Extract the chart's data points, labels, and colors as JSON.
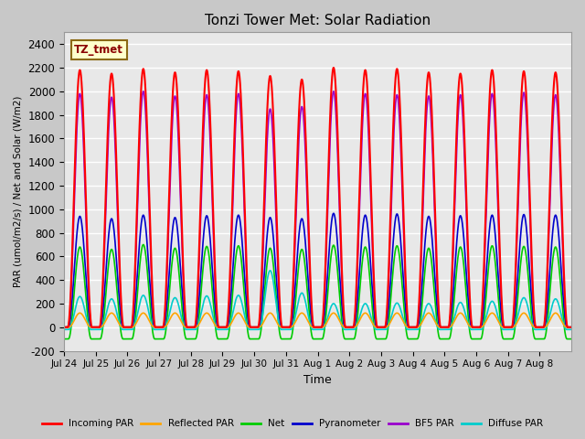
{
  "title": "Tonzi Tower Met: Solar Radiation",
  "ylabel": "PAR (umol/m2/s) / Net and Solar (W/m2)",
  "xlabel": "Time",
  "ylim": [
    -200,
    2500
  ],
  "yticks": [
    -200,
    0,
    200,
    400,
    600,
    800,
    1000,
    1200,
    1400,
    1600,
    1800,
    2000,
    2200,
    2400
  ],
  "xtick_labels": [
    "Jul 24",
    "Jul 25",
    "Jul 26",
    "Jul 27",
    "Jul 28",
    "Jul 29",
    "Jul 30",
    "Jul 31",
    "Aug 1",
    "Aug 2",
    "Aug 3",
    "Aug 4",
    "Aug 5",
    "Aug 6",
    "Aug 7",
    "Aug 8"
  ],
  "annotation_text": "TZ_tmet",
  "annotation_bg": "#FFFFCC",
  "annotation_fg": "#8B0000",
  "annotation_edge": "#8B6914",
  "plot_bg": "#E8E8E8",
  "fig_bg": "#C8C8C8",
  "grid_color": "#FFFFFF",
  "series": {
    "incoming_par": {
      "color": "#FF0000",
      "label": "Incoming PAR"
    },
    "reflected_par": {
      "color": "#FFA500",
      "label": "Reflected PAR"
    },
    "net": {
      "color": "#00CC00",
      "label": "Net"
    },
    "pyranometer": {
      "color": "#0000CC",
      "label": "Pyranometer"
    },
    "bf5_par": {
      "color": "#9900CC",
      "label": "BF5 PAR"
    },
    "diffuse_par": {
      "color": "#00CCCC",
      "label": "Diffuse PAR"
    }
  },
  "n_days": 16,
  "pts_per_day": 288,
  "incoming_peaks": [
    2180,
    2150,
    2190,
    2160,
    2180,
    2170,
    2130,
    2100,
    2200,
    2180,
    2190,
    2160,
    2150,
    2180,
    2170,
    2160
  ],
  "bf5_peaks": [
    1980,
    1950,
    2000,
    1960,
    1970,
    1980,
    1850,
    1870,
    2000,
    1980,
    1970,
    1960,
    1970,
    1980,
    1990,
    1970
  ],
  "pyrano_peaks": [
    940,
    920,
    950,
    930,
    945,
    950,
    930,
    920,
    965,
    950,
    960,
    940,
    945,
    950,
    955,
    950
  ],
  "net_peaks": [
    680,
    660,
    700,
    670,
    685,
    690,
    670,
    660,
    695,
    680,
    690,
    670,
    680,
    690,
    685,
    680
  ],
  "reflected_peaks": [
    120,
    120,
    120,
    120,
    120,
    120,
    120,
    120,
    120,
    120,
    120,
    120,
    120,
    120,
    120,
    120
  ],
  "diffuse_peaks": [
    260,
    240,
    270,
    250,
    265,
    270,
    480,
    290,
    200,
    200,
    205,
    200,
    210,
    220,
    250,
    240
  ]
}
